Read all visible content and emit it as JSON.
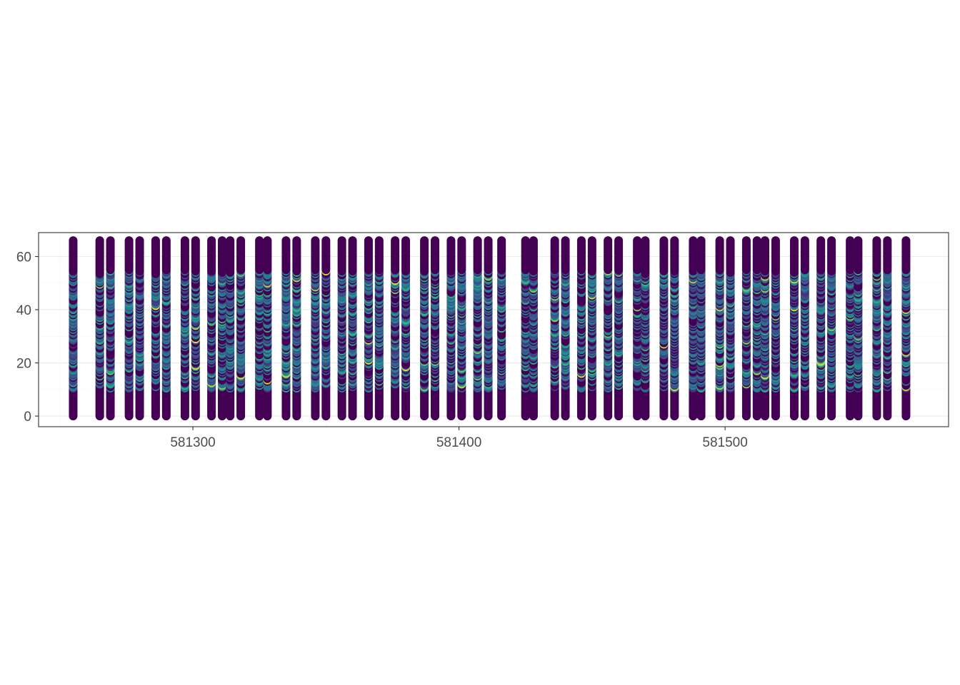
{
  "chart_data": {
    "type": "scatter",
    "title": "",
    "xlabel": "",
    "ylabel": "",
    "xlim": [
      581242,
      581584
    ],
    "ylim": [
      -4,
      69
    ],
    "x_ticks": [
      581300,
      581400,
      581500
    ],
    "x_tick_labels": [
      "581300",
      "581400",
      "581500"
    ],
    "y_ticks": [
      0,
      20,
      40,
      60
    ],
    "y_tick_labels": [
      "0",
      "20",
      "40",
      "60"
    ],
    "grid": true,
    "legend": "none",
    "depth_range": [
      0,
      66
    ],
    "color_scale": "viridis",
    "colors": {
      "background": "#ffffff",
      "panel_border": "#333333",
      "grid_major": "#ebebeb",
      "grid_minor": "#f5f5f5",
      "low": "#440154",
      "mid": "#31688e",
      "high": "#fde725"
    },
    "series_x": [
      581255,
      581265,
      581269,
      581276,
      581280,
      581286,
      581290,
      581297,
      581301,
      581307,
      581311,
      581314,
      581318,
      581325,
      581328,
      581335,
      581339,
      581346,
      581350,
      581356,
      581360,
      581366,
      581370,
      581376,
      581380,
      581387,
      581391,
      581397,
      581401,
      581407,
      581411,
      581416,
      581425,
      581428,
      581436,
      581440,
      581446,
      581450,
      581456,
      581460,
      581467,
      581470,
      581477,
      581481,
      581488,
      581491,
      581498,
      581502,
      581508,
      581512,
      581515,
      581519,
      581526,
      581530,
      581536,
      581540,
      581547,
      581550,
      581557,
      581561,
      581568
    ]
  }
}
